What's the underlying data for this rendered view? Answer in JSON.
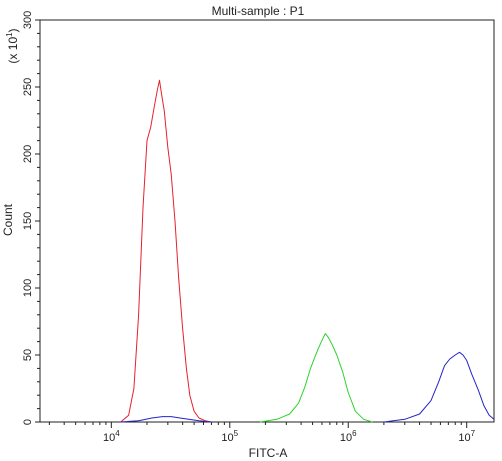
{
  "chart_data": {
    "type": "line",
    "title": "Multi-sample : P1",
    "xlabel": "FITC-A",
    "ylabel": "Count",
    "y_scale_note": {
      "base": "(x 10",
      "exp": "1",
      "close": ")"
    },
    "x_scale": "log",
    "xlim": [
      2500,
      17000000
    ],
    "ylim": [
      0,
      300
    ],
    "x_ticks": [
      {
        "value": 10000,
        "base": "10",
        "exp": "4"
      },
      {
        "value": 100000,
        "base": "10",
        "exp": "5"
      },
      {
        "value": 1000000,
        "base": "10",
        "exp": "6"
      },
      {
        "value": 10000000,
        "base": "10",
        "exp": "7"
      }
    ],
    "y_ticks": [
      "0",
      "50",
      "100",
      "150",
      "200",
      "250",
      "300"
    ],
    "grid": false,
    "series": [
      {
        "color": "#e8202a",
        "x": [
          12000,
          14000,
          15500,
          17000,
          18500,
          20000,
          21500,
          23000,
          24500,
          25500,
          26500,
          28000,
          30000,
          32000,
          34500,
          37000,
          40000,
          43000,
          46000,
          50000,
          55000,
          62000,
          70000
        ],
        "y": [
          0,
          5,
          25,
          80,
          160,
          210,
          220,
          235,
          248,
          255,
          245,
          232,
          205,
          185,
          150,
          108,
          70,
          40,
          20,
          8,
          3,
          1,
          0
        ]
      },
      {
        "color": "#2bd42b",
        "x": [
          180000,
          250000,
          320000,
          380000,
          430000,
          480000,
          520000,
          560000,
          600000,
          640000,
          680000,
          730000,
          800000,
          900000,
          1000000,
          1150000,
          1350000,
          1600000
        ],
        "y": [
          0,
          2,
          6,
          14,
          26,
          40,
          48,
          55,
          61,
          66,
          63,
          58,
          50,
          37,
          22,
          8,
          2,
          0
        ]
      },
      {
        "color": "#2424c8",
        "x": [
          2000000,
          3000000,
          4000000,
          5000000,
          5800000,
          6500000,
          7200000,
          8000000,
          8700000,
          9300000,
          10000000,
          11000000,
          12500000,
          14000000,
          15500000,
          17000000
        ],
        "y": [
          0,
          2,
          6,
          16,
          30,
          42,
          47,
          50,
          52,
          50,
          46,
          36,
          24,
          12,
          5,
          2
        ]
      },
      {
        "color": "#2424c8",
        "x": [
          12000,
          17000,
          22000,
          27000,
          32000,
          38000,
          45000,
          55000,
          70000
        ],
        "y": [
          0,
          1,
          3,
          4,
          4,
          3,
          2,
          1,
          0
        ]
      }
    ]
  }
}
